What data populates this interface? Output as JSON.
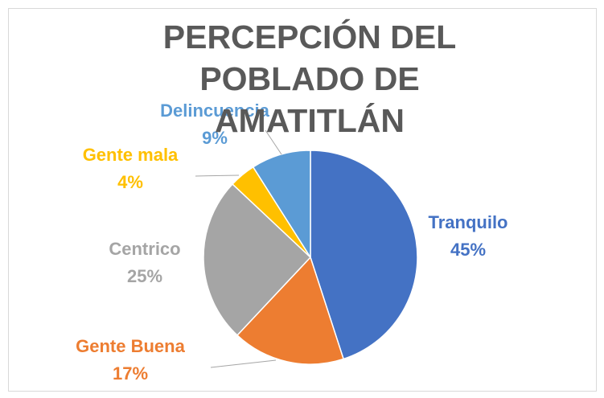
{
  "chart_data": {
    "type": "pie",
    "title": "PERCEPCIÓN DEL POBLADO DE AMATITLÁN",
    "categories": [
      "Tranquilo",
      "Gente Buena",
      "Centrico",
      "Gente mala",
      "Delincuencia"
    ],
    "values": [
      45,
      17,
      25,
      4,
      9
    ],
    "value_labels": [
      "45%",
      "17%",
      "25%",
      "4%",
      "9%"
    ],
    "colors": [
      "#4472c4",
      "#ed7d31",
      "#a5a5a5",
      "#ffc000",
      "#5b9bd5"
    ]
  }
}
